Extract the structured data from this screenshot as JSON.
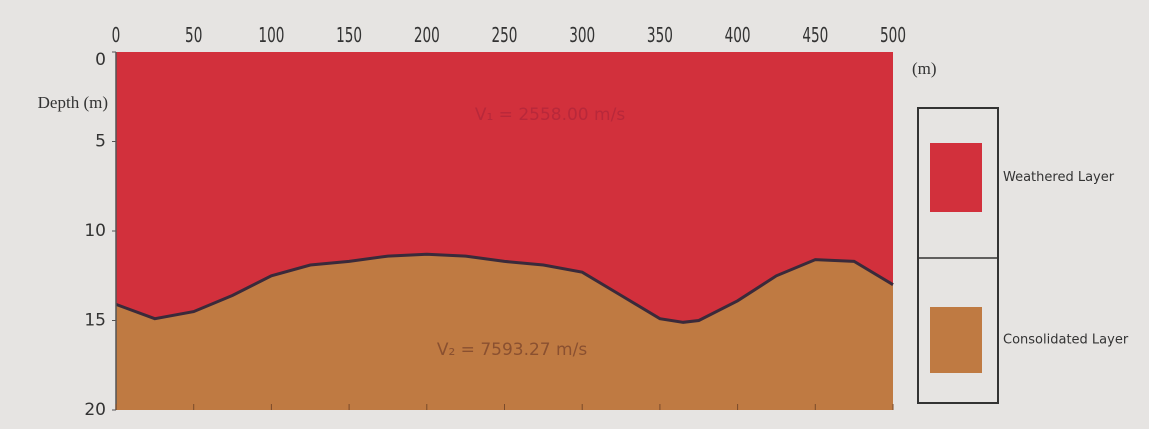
{
  "chart_data": {
    "type": "area",
    "xlabel": "(m)",
    "ylabel": "Depth (m)",
    "x": [
      0,
      25,
      50,
      75,
      100,
      125,
      150,
      175,
      200,
      225,
      250,
      275,
      300,
      325,
      350,
      365,
      375,
      400,
      425,
      450,
      475,
      500
    ],
    "values": [
      14.1,
      14.9,
      14.5,
      13.6,
      12.5,
      11.9,
      11.7,
      11.4,
      11.3,
      11.4,
      11.7,
      11.9,
      12.3,
      13.6,
      14.9,
      15.1,
      15.0,
      13.9,
      12.5,
      11.6,
      11.7,
      13.0
    ],
    "layers": [
      {
        "name": "Weathered Layer",
        "color": "#d2303c"
      },
      {
        "name": "Consolidated Layer",
        "color": "#bf7a42"
      }
    ],
    "annotations": [
      "V₁ = 2558.00 m/s",
      "V₂ = 7593.27 m/s"
    ],
    "xlim": [
      0,
      500
    ],
    "xticks": [
      0,
      50,
      100,
      150,
      200,
      250,
      300,
      350,
      400,
      450,
      500
    ],
    "ylim": [
      0,
      20
    ],
    "yticks": [
      0,
      5,
      10,
      15,
      20
    ],
    "y_inverted": true
  }
}
